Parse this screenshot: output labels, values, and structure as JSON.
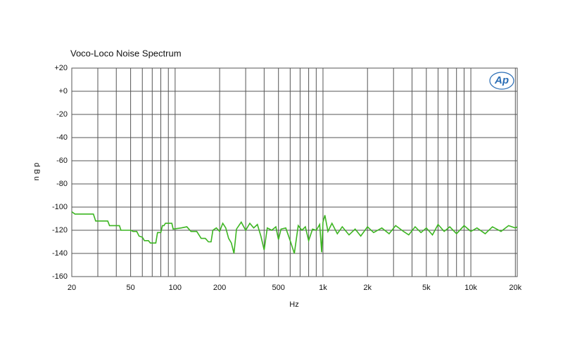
{
  "chart_data": {
    "type": "line",
    "title": "Voco-Loco Noise Spectrum",
    "x_label": "Hz",
    "y_label": "dBu",
    "logo": "Ap",
    "log_x": true,
    "grid": true,
    "xlim": [
      20,
      20600
    ],
    "ylim": [
      -160,
      20
    ],
    "xticks": [
      20,
      50,
      100,
      200,
      500,
      {
        "value": 1000,
        "label": "1k"
      },
      {
        "value": 2000,
        "label": "2k"
      },
      {
        "value": 5000,
        "label": "5k"
      },
      {
        "value": 10000,
        "label": "10k"
      },
      {
        "value": 20000,
        "label": "20k"
      }
    ],
    "xminorticks": [
      30,
      40,
      60,
      70,
      80,
      90,
      300,
      400,
      600,
      700,
      800,
      900,
      3000,
      4000,
      6000,
      7000,
      8000,
      9000
    ],
    "yticks": [
      {
        "value": 20,
        "label": "+20"
      },
      {
        "value": 0,
        "label": "+0"
      },
      -20,
      -40,
      -60,
      -80,
      -100,
      -120,
      -140,
      -160
    ],
    "x": [
      20,
      21,
      28,
      29,
      35,
      36,
      42,
      43,
      50,
      52,
      55,
      57,
      60,
      62,
      66,
      68,
      74,
      76,
      80,
      82,
      84,
      86,
      95,
      97,
      110,
      120,
      128,
      140,
      150,
      160,
      168,
      175,
      180,
      190,
      200,
      210,
      220,
      230,
      240,
      250,
      260,
      280,
      300,
      320,
      340,
      360,
      380,
      400,
      420,
      450,
      480,
      500,
      520,
      560,
      600,
      640,
      680,
      720,
      760,
      800,
      850,
      900,
      950,
      980,
      1000,
      1030,
      1080,
      1150,
      1250,
      1350,
      1500,
      1650,
      1800,
      2000,
      2200,
      2500,
      2800,
      3100,
      3500,
      3800,
      4200,
      4600,
      5000,
      5500,
      6000,
      6600,
      7200,
      8000,
      9000,
      10000,
      11000,
      12500,
      14000,
      16000,
      18000,
      20000,
      20600
    ],
    "series": [
      {
        "color": "#3cb521",
        "values": [
          -104,
          -106,
          -106,
          -112,
          -112,
          -116,
          -116,
          -120,
          -120,
          -121,
          -121,
          -125,
          -126,
          -129,
          -129,
          -131,
          -131,
          -122,
          -122,
          -116,
          -116,
          -114,
          -114,
          -119,
          -118,
          -117,
          -121,
          -121,
          -127,
          -127,
          -130,
          -130,
          -120,
          -118,
          -121,
          -114,
          -118,
          -127,
          -131,
          -140,
          -119,
          -113,
          -120,
          -114,
          -118,
          -115,
          -125,
          -137,
          -118,
          -120,
          -117,
          -128,
          -119,
          -118,
          -129,
          -140,
          -116,
          -120,
          -117,
          -129,
          -119,
          -120,
          -115,
          -139,
          -113,
          -107,
          -121,
          -114,
          -123,
          -117,
          -124,
          -119,
          -125,
          -117,
          -122,
          -118,
          -123,
          -116,
          -121,
          -124,
          -117,
          -122,
          -118,
          -124,
          -115,
          -121,
          -117,
          -123,
          -116,
          -121,
          -118,
          -123,
          -117,
          -121,
          -116,
          -118,
          -117
        ]
      }
    ]
  }
}
